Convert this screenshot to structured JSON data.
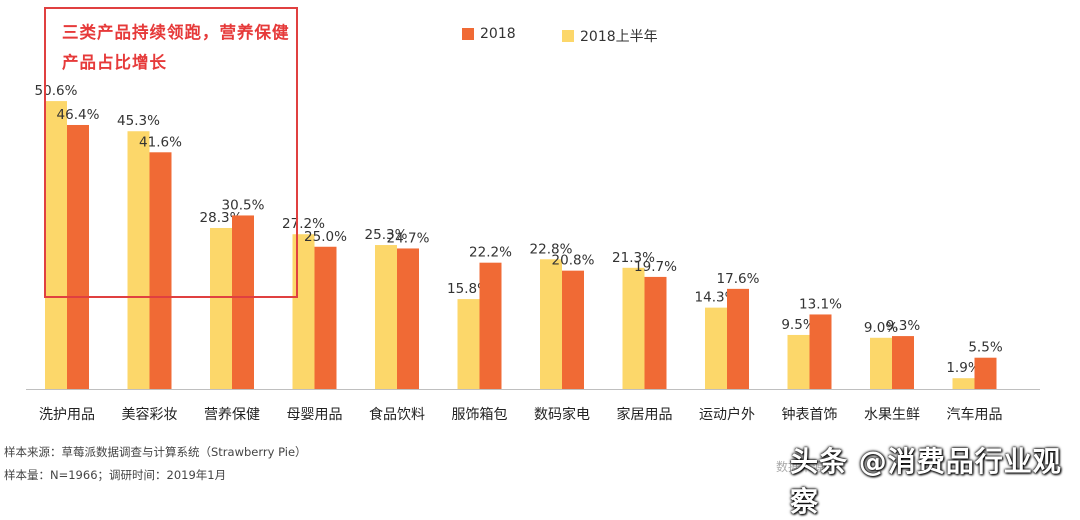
{
  "callout": {
    "text": "三类产品持续领跑，营养保健产品占比增长"
  },
  "legend": [
    {
      "label": "2018",
      "color": "#f06a35"
    },
    {
      "label": "2018上半年",
      "color": "#fcd76a"
    }
  ],
  "chart_data": {
    "type": "bar",
    "categories": [
      "洗护用品",
      "美容彩妆",
      "营养保健",
      "母婴用品",
      "食品饮料",
      "服饰箱包",
      "数码家电",
      "家居用品",
      "运动户外",
      "钟表首饰",
      "水果生鲜",
      "汽车用品"
    ],
    "series": [
      {
        "name": "2018上半年",
        "color": "#fcd76a",
        "values": [
          50.6,
          45.3,
          28.3,
          27.2,
          25.3,
          15.8,
          22.8,
          21.3,
          14.3,
          9.5,
          9.0,
          1.9
        ],
        "labels": [
          "50.6%",
          "45.3%",
          "28.3%",
          "27.2%",
          "25.3%",
          "15.8%",
          "22.8%",
          "21.3%",
          "14.3%",
          "9.5%",
          "9.0%",
          "1.9%"
        ]
      },
      {
        "name": "2018",
        "color": "#f06a35",
        "values": [
          46.4,
          41.6,
          30.5,
          25.0,
          24.7,
          22.2,
          20.8,
          19.7,
          17.6,
          13.1,
          9.3,
          5.5
        ],
        "labels": [
          "46.4%",
          "41.6%",
          "30.5%",
          "25.0%",
          "24.7%",
          "22.2%",
          "20.8%",
          "19.7%",
          "17.6%",
          "13.1%",
          "9.3%",
          "5.5%"
        ]
      }
    ],
    "ylim": [
      0,
      55
    ],
    "grid": false,
    "legend_position": "top"
  },
  "footnotes": {
    "source": "样本来源：草莓派数据调查与计算系统（Strawberry Pie）",
    "sample": "样本量：N=1966；调研时间：2019年1月"
  },
  "watermark": {
    "text": "头条 @消费品行业观察",
    "under": "数据来源"
  }
}
